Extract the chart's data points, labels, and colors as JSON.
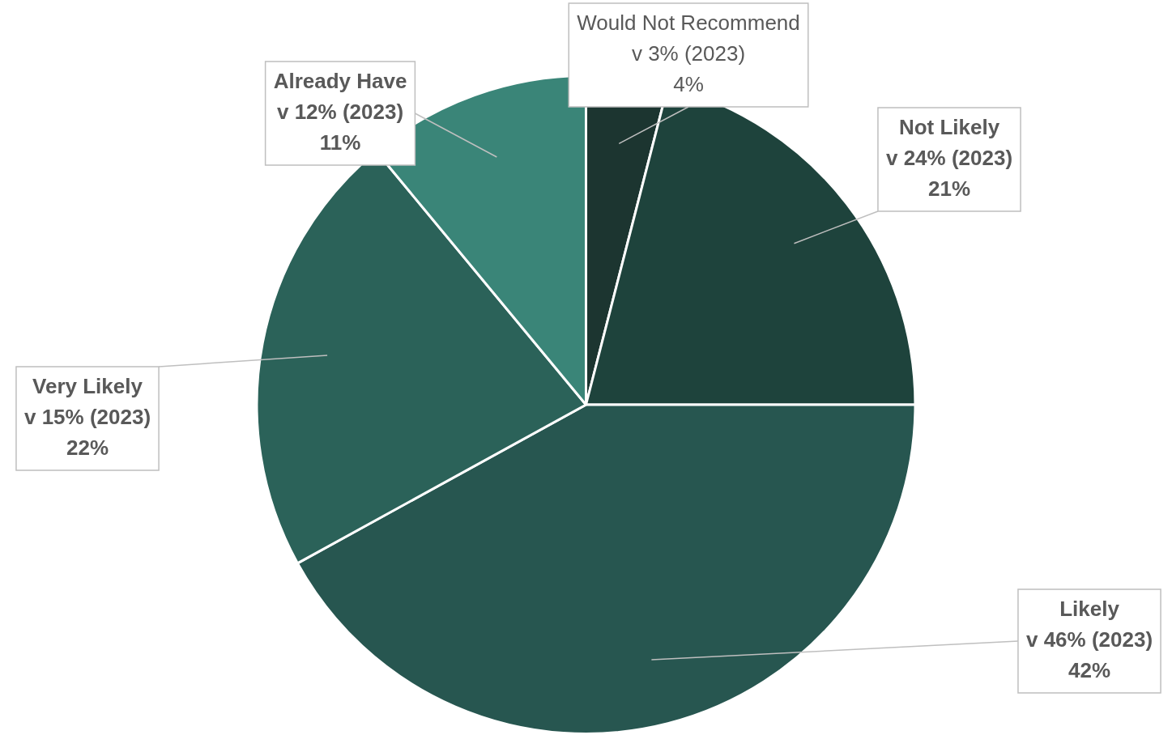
{
  "chart_data": {
    "type": "pie",
    "categories": [
      "Would Not Recommend",
      "Not Likely",
      "Likely",
      "Very Likely",
      "Already Have"
    ],
    "values": [
      4,
      21,
      42,
      22,
      11
    ],
    "colors": [
      "#1c3530",
      "#1e433c",
      "#275650",
      "#2b6259",
      "#3a8578"
    ],
    "annotations": [
      "v 3% (2023)",
      "v 24% (2023)",
      "v 46% (2023)",
      "v 15% (2023)",
      "v 12% (2023)"
    ],
    "value_labels": [
      "4%",
      "21%",
      "42%",
      "22%",
      "11%"
    ],
    "legend": false
  }
}
